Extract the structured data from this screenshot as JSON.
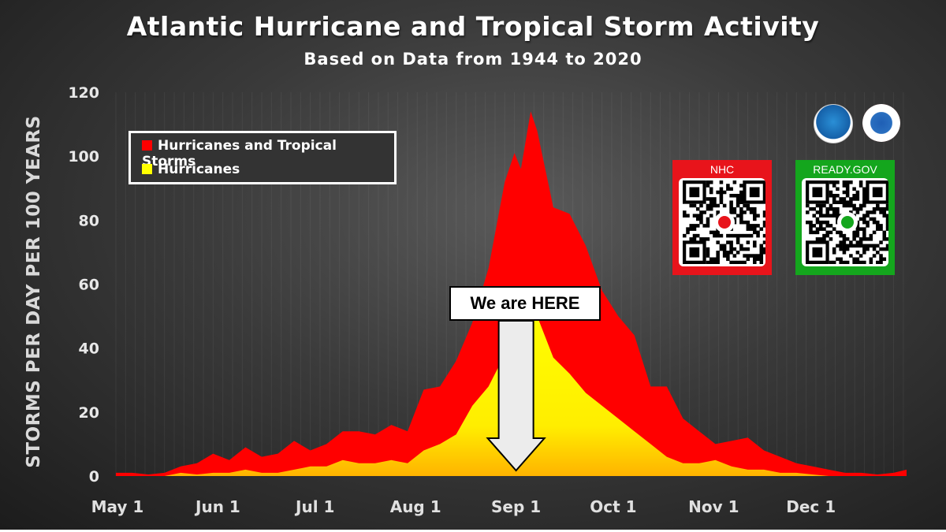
{
  "chart_data": {
    "type": "area",
    "title": "Atlantic Hurricane and Tropical Storm Activity",
    "subtitle": "Based on Data from 1944 to 2020",
    "ylabel": "STORMS PER DAY PER 100 YEARS",
    "xlabel": "",
    "ylim": [
      0,
      120
    ],
    "yticks": [
      0,
      20,
      40,
      60,
      80,
      100,
      120
    ],
    "xticks": [
      {
        "day": 1,
        "label": "May 1"
      },
      {
        "day": 32,
        "label": "Jun 1"
      },
      {
        "day": 62,
        "label": "Jul 1"
      },
      {
        "day": 93,
        "label": "Aug 1"
      },
      {
        "day": 124,
        "label": "Sep 1"
      },
      {
        "day": 154,
        "label": "Oct 1"
      },
      {
        "day": 185,
        "label": "Nov 1"
      },
      {
        "day": 215,
        "label": "Dec 1"
      }
    ],
    "x": [
      1,
      6,
      11,
      16,
      21,
      26,
      31,
      36,
      41,
      46,
      51,
      56,
      61,
      66,
      71,
      76,
      81,
      86,
      91,
      96,
      101,
      106,
      111,
      116,
      121,
      124,
      126,
      129,
      131,
      136,
      141,
      146,
      151,
      156,
      161,
      166,
      171,
      176,
      181,
      186,
      191,
      196,
      201,
      206,
      211,
      216,
      221,
      226,
      231,
      236,
      241,
      245
    ],
    "series": [
      {
        "name": "Hurricanes and Tropical Storms",
        "color": "#ff0000",
        "values": [
          1,
          1,
          0.5,
          1,
          3,
          4,
          7,
          5,
          9,
          6,
          7,
          11,
          8,
          10,
          14,
          14,
          13,
          16,
          14,
          27,
          28,
          36,
          48,
          65,
          92,
          101,
          96,
          114,
          108,
          84,
          82,
          72,
          58,
          50,
          44,
          28,
          28,
          18,
          14,
          10,
          11,
          12,
          8,
          6,
          4,
          3,
          2,
          1,
          1,
          0.5,
          1,
          2
        ]
      },
      {
        "name": "Hurricanes",
        "color": "#ffff00",
        "values": [
          0,
          0,
          0,
          0,
          1,
          0.5,
          1,
          1,
          2,
          1,
          1,
          2,
          3,
          3,
          5,
          4,
          4,
          5,
          4,
          8,
          10,
          13,
          22,
          28,
          38,
          46,
          52,
          52,
          50,
          37,
          32,
          26,
          22,
          18,
          14,
          10,
          6,
          4,
          4,
          5,
          3,
          2,
          2,
          1,
          1,
          0.5,
          0,
          0,
          0,
          0,
          0,
          0
        ]
      }
    ],
    "legend_position": "top-left",
    "annotation": "We are HERE",
    "annotation_day": 124
  },
  "qr_codes": [
    {
      "label": "NHC",
      "color": "#e8141b"
    },
    {
      "label": "READY.GOV",
      "color": "#14a61d"
    }
  ],
  "logos": [
    "noaa-logo",
    "nws-logo"
  ]
}
